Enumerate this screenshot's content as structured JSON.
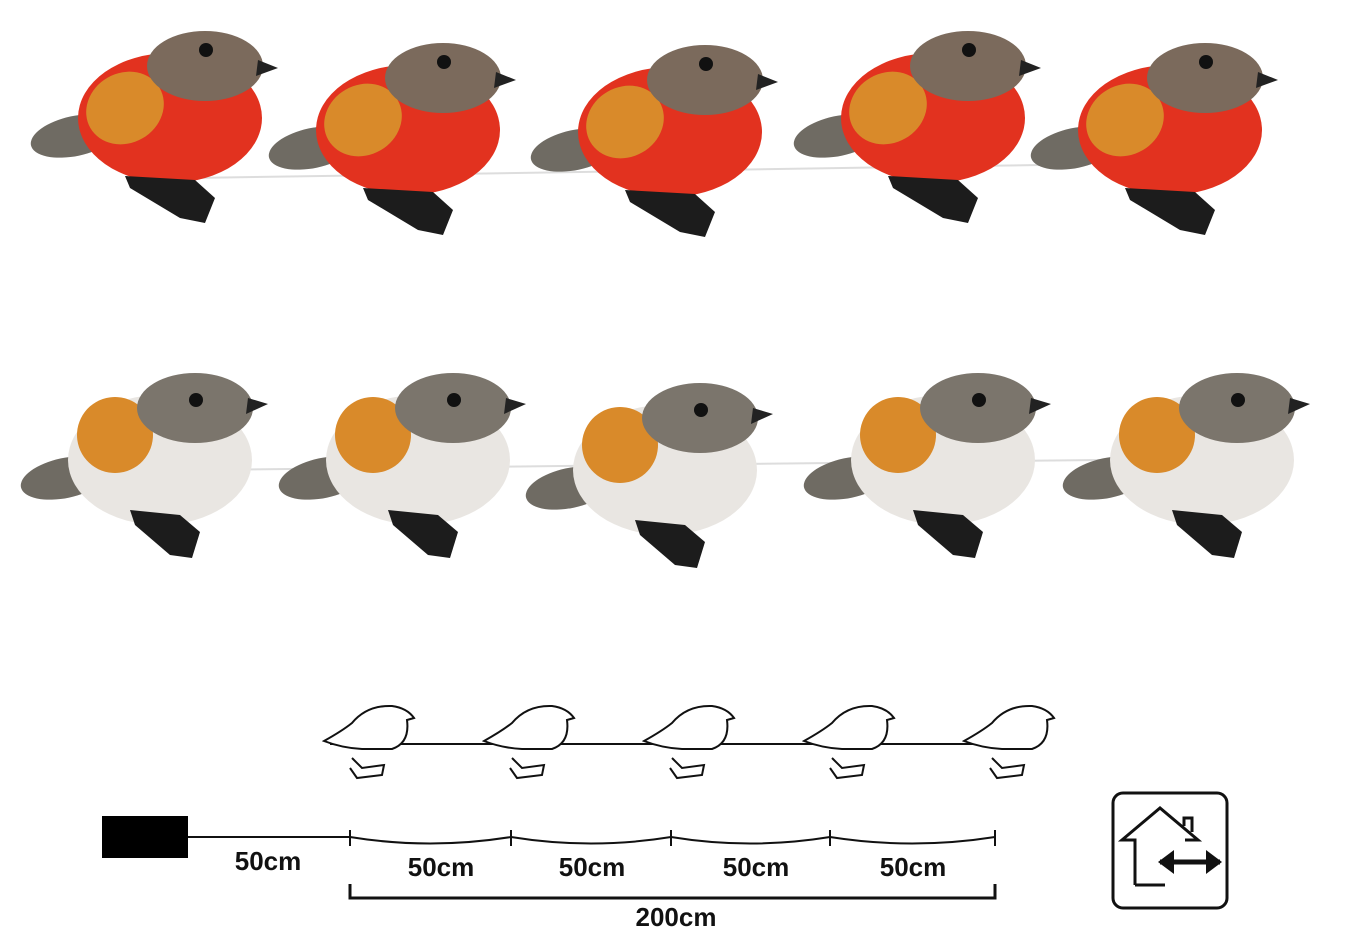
{
  "dimensions": {
    "lead": "50cm",
    "segments": [
      "50cm",
      "50cm",
      "50cm",
      "50cm"
    ],
    "total": "200cm"
  }
}
